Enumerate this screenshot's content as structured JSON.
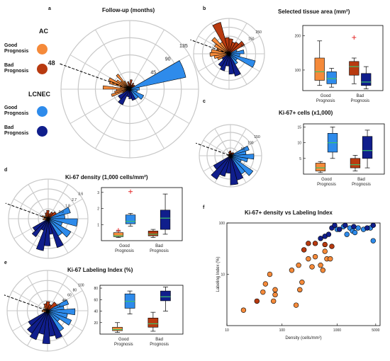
{
  "colors": {
    "ac_good": "#F58A3A",
    "ac_bad": "#B83A10",
    "lc_good": "#2E8BEB",
    "lc_bad": "#101E8C",
    "median": "#39C46A",
    "outlier": "#E53030",
    "grid": "#C8C8C8"
  },
  "legend": {
    "groups": [
      {
        "label": "AC",
        "items": [
          {
            "label": "Good Prognosis",
            "color": "#F58A3A"
          },
          {
            "label": "Bad Prognosis",
            "color": "#B83A10"
          }
        ]
      },
      {
        "label": "LCNEC",
        "items": [
          {
            "label": "Good Prognosis",
            "color": "#2E8BEB"
          },
          {
            "label": "Bad Prognosis",
            "color": "#101E8C"
          }
        ]
      }
    ]
  },
  "panels": {
    "a": "a",
    "b": "b",
    "c": "c",
    "d": "d",
    "e": "e",
    "f": "f"
  },
  "box_xtick": [
    "Good Prognosis",
    "Bad Prognosis"
  ],
  "chart_data": [
    {
      "id": "a",
      "type": "polar-bar",
      "title": "Follow-up (months)",
      "rticks": [
        "45",
        "90",
        "135"
      ],
      "rmax": 180,
      "marker": "48",
      "bars": [
        {
          "g": "ac_good",
          "v": [
            20,
            50,
            40,
            35,
            70,
            25,
            55,
            60,
            40,
            30,
            50,
            25
          ]
        },
        {
          "g": "ac_bad",
          "v": [
            10,
            20,
            15,
            25,
            12,
            18,
            14,
            16
          ]
        },
        {
          "g": "lc_good",
          "v": [
            150,
            25,
            20,
            40,
            30
          ]
        },
        {
          "g": "lc_bad",
          "v": [
            30,
            25,
            20,
            45,
            35
          ]
        }
      ]
    },
    {
      "id": "b",
      "type": "polar-bar",
      "title": "Selected tissue area (mm²)",
      "rticks": [
        "50",
        "150",
        "250"
      ],
      "rmax": 260,
      "marker": "",
      "bars": [
        {
          "g": "ac_good",
          "v": [
            90,
            110,
            140,
            130,
            95,
            120,
            160,
            100
          ]
        },
        {
          "g": "ac_bad",
          "v": [
            240,
            120,
            110,
            90,
            100,
            130
          ]
        },
        {
          "g": "lc_good",
          "v": [
            60,
            110,
            80,
            200,
            70,
            90
          ]
        },
        {
          "g": "lc_bad",
          "v": [
            170,
            150,
            90,
            130,
            110,
            60
          ]
        }
      ]
    },
    {
      "id": "b_box",
      "type": "box",
      "ymin": 40,
      "ymax": 230,
      "yticks": [
        100,
        200
      ],
      "boxes": [
        {
          "g": "ac_good",
          "min": 55,
          "q1": 70,
          "med": 95,
          "q3": 135,
          "max": 185
        },
        {
          "g": "lc_good",
          "min": 50,
          "q1": 60,
          "med": 75,
          "q3": 95,
          "max": 105
        },
        {
          "g": "ac_bad",
          "min": 60,
          "q1": 85,
          "med": 110,
          "q3": 125,
          "max": 135,
          "out": [
            195
          ]
        },
        {
          "g": "lc_bad",
          "min": 45,
          "q1": 55,
          "med": 65,
          "q3": 90,
          "max": 110
        }
      ]
    },
    {
      "id": "c",
      "type": "polar-bar",
      "title": "Ki-67+ cells (x1,000)",
      "rticks": [
        "50",
        "100",
        "150"
      ],
      "rmax": 160,
      "marker": "",
      "bars": [
        {
          "g": "ac_good",
          "v": [
            10,
            8,
            15,
            6,
            12,
            9
          ]
        },
        {
          "g": "ac_bad",
          "v": [
            20,
            25,
            15,
            18,
            22
          ]
        },
        {
          "g": "lc_good",
          "v": [
            100,
            80,
            120,
            90,
            60,
            140,
            110
          ]
        },
        {
          "g": "lc_bad",
          "v": [
            130,
            150,
            90,
            110,
            140,
            100
          ]
        }
      ]
    },
    {
      "id": "c_box",
      "type": "box",
      "ymin": 0,
      "ymax": 16,
      "yticks": [
        5,
        10,
        15
      ],
      "boxes": [
        {
          "g": "ac_good",
          "min": 0.5,
          "q1": 1,
          "med": 2,
          "q3": 3.5,
          "max": 4
        },
        {
          "g": "lc_good",
          "min": 5,
          "q1": 7,
          "med": 10,
          "q3": 13,
          "max": 15
        },
        {
          "g": "ac_bad",
          "min": 1,
          "q1": 2,
          "med": 3,
          "q3": 5,
          "max": 6
        },
        {
          "g": "lc_bad",
          "min": 2,
          "q1": 5,
          "med": 7.5,
          "q3": 12,
          "max": 14
        }
      ]
    },
    {
      "id": "d",
      "type": "polar-bar",
      "title": "Ki-67 density (1,000 cells/mm²)",
      "rticks": [
        "0.9",
        "1.8",
        "2.7",
        "3.6"
      ],
      "rmax": 3.8,
      "marker": "",
      "bars": [
        {
          "g": "ac_good",
          "v": [
            0.3,
            0.5,
            0.4,
            0.6,
            0.35,
            0.45
          ]
        },
        {
          "g": "ac_bad",
          "v": [
            0.6,
            0.8,
            0.5,
            0.7,
            0.9
          ]
        },
        {
          "g": "lc_good",
          "v": [
            2.2,
            1.6,
            2.8,
            1.4,
            2.5,
            1.9
          ]
        },
        {
          "g": "lc_bad",
          "v": [
            2.9,
            1.5,
            2.6,
            3.1,
            1.2,
            2.1,
            1.7
          ]
        }
      ]
    },
    {
      "id": "d_box",
      "type": "box",
      "ymin": 0,
      "ymax": 3.3,
      "yticks": [
        1,
        2,
        3
      ],
      "boxes": [
        {
          "g": "ac_good",
          "min": 0.2,
          "q1": 0.25,
          "med": 0.3,
          "q3": 0.5,
          "max": 0.6,
          "out": [
            0.65
          ]
        },
        {
          "g": "lc_good",
          "min": 0.9,
          "q1": 1.05,
          "med": 1.2,
          "q3": 1.6,
          "max": 1.7,
          "out": [
            3.05
          ]
        },
        {
          "g": "ac_bad",
          "min": 0.2,
          "q1": 0.3,
          "med": 0.4,
          "q3": 0.6,
          "max": 0.7
        },
        {
          "g": "lc_bad",
          "min": 0.4,
          "q1": 0.7,
          "med": 1.4,
          "q3": 1.9,
          "max": 2.9
        }
      ]
    },
    {
      "id": "e",
      "type": "polar-bar",
      "title": "Ki-67 Labeling Index (%)",
      "rticks": [
        "20",
        "40",
        "60",
        "80",
        "100"
      ],
      "rmax": 110,
      "marker": "",
      "bars": [
        {
          "g": "ac_good",
          "v": [
            10,
            15,
            12,
            8,
            14
          ]
        },
        {
          "g": "ac_bad",
          "v": [
            20,
            25,
            18,
            30
          ]
        },
        {
          "g": "lc_good",
          "v": [
            60,
            45,
            75,
            55,
            70,
            40,
            65
          ]
        },
        {
          "g": "lc_bad",
          "v": [
            80,
            70,
            90,
            65,
            85,
            75,
            60
          ]
        }
      ]
    },
    {
      "id": "e_box",
      "type": "box",
      "ymin": 0,
      "ymax": 85,
      "yticks": [
        20,
        40,
        60,
        80
      ],
      "boxes": [
        {
          "g": "ac_good",
          "min": 3,
          "q1": 6,
          "med": 8,
          "q3": 12,
          "max": 20
        },
        {
          "g": "lc_good",
          "min": 35,
          "q1": 45,
          "med": 57,
          "q3": 70,
          "max": 75
        },
        {
          "g": "ac_bad",
          "min": 5,
          "q1": 12,
          "med": 18,
          "q3": 28,
          "max": 38
        },
        {
          "g": "lc_bad",
          "min": 40,
          "q1": 58,
          "med": 65,
          "q3": 75,
          "max": 82
        }
      ]
    },
    {
      "id": "f",
      "type": "scatter",
      "title": "Ki-67+ density vs Labeling Index",
      "xlabel": "Density (cells/mm²)",
      "ylabel": "Labeling Index (%)",
      "xlog": true,
      "ylog": true,
      "xlim": [
        10,
        6000
      ],
      "ylim": [
        1,
        100
      ],
      "xticks": [
        [
          10,
          "10"
        ],
        [
          100,
          "100"
        ],
        [
          1000,
          "1000"
        ],
        [
          5000,
          "5000"
        ]
      ],
      "yticks": [
        [
          10,
          "10"
        ],
        [
          100,
          "100"
        ]
      ],
      "points": [
        {
          "g": "ac_good",
          "pts": [
            [
              20,
              2
            ],
            [
              45,
              4.5
            ],
            [
              50,
              6.5
            ],
            [
              60,
              10
            ],
            [
              70,
              3
            ],
            [
              75,
              4
            ],
            [
              75,
              5
            ],
            [
              150,
              12
            ],
            [
              180,
              2.5
            ],
            [
              200,
              15
            ],
            [
              210,
              5
            ],
            [
              230,
              7
            ],
            [
              300,
              20
            ],
            [
              350,
              14
            ],
            [
              400,
              22
            ],
            [
              500,
              15
            ],
            [
              550,
              12
            ],
            [
              600,
              28
            ],
            [
              650,
              20
            ],
            [
              750,
              20
            ]
          ]
        },
        {
          "g": "ac_bad",
          "pts": [
            [
              35,
              3
            ],
            [
              250,
              30
            ],
            [
              300,
              40
            ],
            [
              400,
              40
            ],
            [
              600,
              38
            ],
            [
              800,
              35
            ]
          ]
        },
        {
          "g": "lc_good",
          "pts": [
            [
              1000,
              75
            ],
            [
              1300,
              85
            ],
            [
              1500,
              60
            ],
            [
              1700,
              80
            ],
            [
              1900,
              70
            ],
            [
              2100,
              65
            ],
            [
              2400,
              80
            ],
            [
              3000,
              75
            ],
            [
              4000,
              80
            ],
            [
              4500,
              45
            ]
          ]
        },
        {
          "g": "lc_bad",
          "pts": [
            [
              500,
              50
            ],
            [
              600,
              55
            ],
            [
              700,
              60
            ],
            [
              800,
              80
            ],
            [
              900,
              90
            ],
            [
              1100,
              75
            ],
            [
              1400,
              90
            ],
            [
              2000,
              85
            ],
            [
              3500,
              80
            ],
            [
              4500,
              90
            ]
          ]
        }
      ]
    }
  ]
}
